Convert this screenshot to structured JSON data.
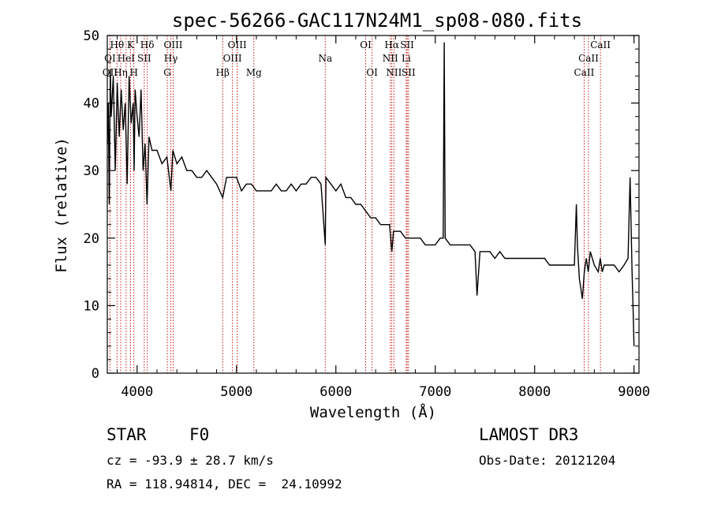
{
  "chart_data": {
    "type": "line",
    "title": "spec-56266-GAC117N24M1_sp08-080.fits",
    "xlabel": "Wavelength (Å)",
    "ylabel": "Flux (relative)",
    "xlim": [
      3700,
      9050
    ],
    "ylim": [
      0,
      50
    ],
    "xticks": [
      4000,
      5000,
      6000,
      7000,
      8000,
      9000
    ],
    "yticks": [
      0,
      10,
      20,
      30,
      40,
      50
    ],
    "series": [
      {
        "name": "spectrum",
        "x": [
          3700,
          3710,
          3720,
          3730,
          3740,
          3760,
          3780,
          3800,
          3820,
          3840,
          3860,
          3880,
          3900,
          3920,
          3940,
          3960,
          3970,
          3980,
          4000,
          4020,
          4040,
          4060,
          4080,
          4100,
          4120,
          4150,
          4200,
          4250,
          4300,
          4340,
          4360,
          4400,
          4450,
          4500,
          4550,
          4600,
          4650,
          4700,
          4750,
          4800,
          4861,
          4900,
          4950,
          5000,
          5050,
          5100,
          5150,
          5200,
          5250,
          5300,
          5350,
          5400,
          5450,
          5500,
          5550,
          5600,
          5650,
          5700,
          5750,
          5800,
          5850,
          5893,
          5900,
          5950,
          6000,
          6050,
          6100,
          6150,
          6200,
          6250,
          6300,
          6350,
          6400,
          6450,
          6500,
          6540,
          6563,
          6580,
          6600,
          6650,
          6700,
          6750,
          6800,
          6850,
          6900,
          6950,
          7000,
          7050,
          7080,
          7090,
          7100,
          7150,
          7200,
          7250,
          7300,
          7350,
          7400,
          7420,
          7450,
          7500,
          7550,
          7600,
          7650,
          7700,
          7750,
          7800,
          7850,
          7900,
          7950,
          8000,
          8050,
          8100,
          8150,
          8200,
          8250,
          8300,
          8350,
          8400,
          8420,
          8430,
          8450,
          8480,
          8500,
          8520,
          8540,
          8560,
          8600,
          8640,
          8660,
          8680,
          8700,
          8750,
          8800,
          8850,
          8900,
          8940,
          8960,
          8980,
          8990,
          9000
        ],
        "values": [
          34,
          40,
          25,
          45,
          38,
          44,
          30,
          43,
          35,
          42,
          36,
          40,
          28,
          44,
          37,
          40,
          30,
          42,
          38,
          35,
          42,
          30,
          34,
          25,
          35,
          33,
          33,
          31,
          32,
          27,
          33,
          31,
          32,
          30,
          30,
          29,
          29,
          30,
          29,
          28,
          26,
          29,
          29,
          29,
          27,
          28,
          28,
          27,
          27,
          27,
          27,
          28,
          27,
          27,
          28,
          27,
          28,
          28,
          29,
          29,
          28,
          19,
          29,
          28,
          27,
          28,
          26,
          26,
          25,
          25,
          24,
          23,
          23,
          22,
          22,
          22,
          18,
          21,
          21,
          21,
          20,
          20,
          20,
          20,
          19,
          19,
          19,
          20,
          20,
          49,
          20,
          19,
          19,
          19,
          19,
          19,
          18,
          11.5,
          18,
          18,
          18,
          17,
          18,
          17,
          17,
          17,
          17,
          17,
          17,
          17,
          17,
          17,
          16,
          16,
          16,
          16,
          16,
          16,
          25,
          19,
          14,
          11,
          15,
          17,
          15,
          18,
          16,
          15,
          17,
          15,
          16,
          16,
          16,
          15,
          16,
          17,
          29,
          15,
          10,
          4
        ],
        "color": "#000000"
      }
    ],
    "emission_lines": [
      {
        "label": "Hθ",
        "wavelength": 3798,
        "row": 1
      },
      {
        "label": "K",
        "wavelength": 3934,
        "row": 1
      },
      {
        "label": "Hδ",
        "wavelength": 4102,
        "row": 1
      },
      {
        "label": "OIII",
        "wavelength": 4363,
        "row": 1
      },
      {
        "label": "OIII",
        "wavelength": 5007,
        "row": 1
      },
      {
        "label": "OI",
        "wavelength": 6300,
        "row": 1
      },
      {
        "label": "Hα",
        "wavelength": 6563,
        "row": 1
      },
      {
        "label": "SII",
        "wavelength": 6717,
        "row": 1
      },
      {
        "label": "CaII",
        "wavelength": 8662,
        "row": 1
      },
      {
        "label": "OI",
        "wavelength": 3727,
        "row": 2
      },
      {
        "label": "HeI",
        "wavelength": 3889,
        "row": 2
      },
      {
        "label": "SII",
        "wavelength": 4072,
        "row": 2
      },
      {
        "label": "Hγ",
        "wavelength": 4340,
        "row": 2
      },
      {
        "label": "OIII",
        "wavelength": 4959,
        "row": 2
      },
      {
        "label": "Na",
        "wavelength": 5893,
        "row": 2
      },
      {
        "label": "NII",
        "wavelength": 6548,
        "row": 2
      },
      {
        "label": "Li",
        "wavelength": 6708,
        "row": 2
      },
      {
        "label": "CaII",
        "wavelength": 8542,
        "row": 2
      },
      {
        "label": "OII",
        "wavelength": 3727,
        "row": 3
      },
      {
        "label": "Hη",
        "wavelength": 3835,
        "row": 3
      },
      {
        "label": "H",
        "wavelength": 3968,
        "row": 3
      },
      {
        "label": "G",
        "wavelength": 4304,
        "row": 3
      },
      {
        "label": "Hβ",
        "wavelength": 4861,
        "row": 3
      },
      {
        "label": "Mg",
        "wavelength": 5175,
        "row": 3
      },
      {
        "label": "OI",
        "wavelength": 6364,
        "row": 3
      },
      {
        "label": "NII",
        "wavelength": 6584,
        "row": 3
      },
      {
        "label": "SII",
        "wavelength": 6731,
        "row": 3
      },
      {
        "label": "CaII",
        "wavelength": 8498,
        "row": 3
      }
    ],
    "line_color": "#c00000"
  },
  "info": {
    "classification": "STAR",
    "subclass": "F0",
    "survey": "LAMOST DR3",
    "cz": "cz = -93.9 ± 28.7 km/s",
    "obs_date": "Obs-Date: 20121204",
    "coords": "RA = 118.94814, DEC =  24.10992"
  }
}
